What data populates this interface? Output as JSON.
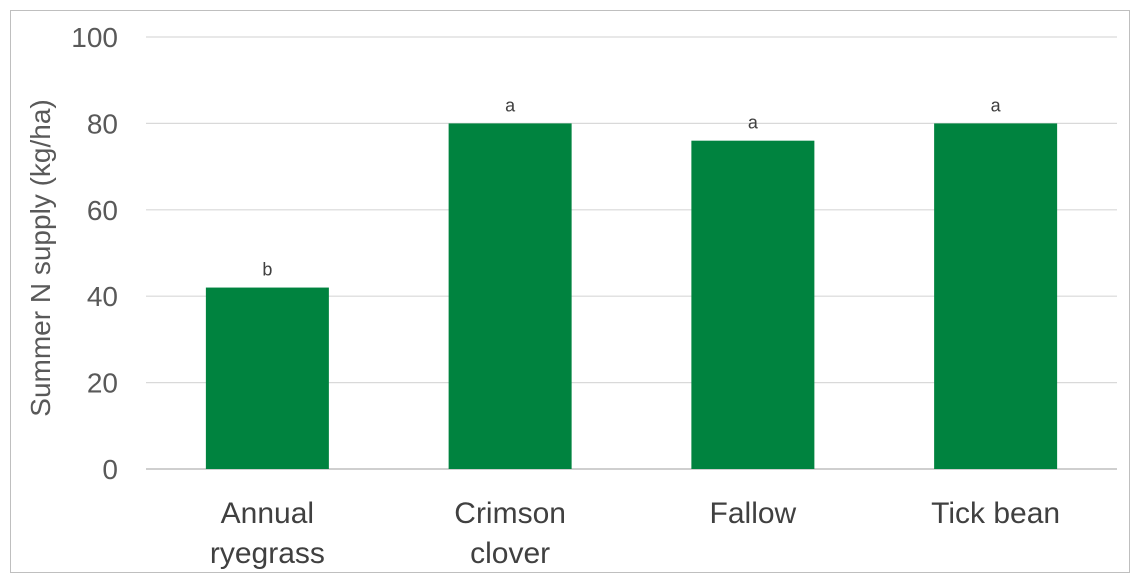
{
  "chart_data": {
    "type": "bar",
    "categories": [
      [
        "Annual",
        "ryegrass"
      ],
      [
        "Crimson",
        "clover"
      ],
      [
        "Fallow"
      ],
      [
        "Tick bean"
      ]
    ],
    "values": [
      42,
      80,
      76,
      80
    ],
    "data_labels": [
      "b",
      "a",
      "a",
      "a"
    ],
    "title": "",
    "xlabel": "",
    "ylabel": "Summer N supply (kg/ha)",
    "ylim": [
      0,
      100
    ],
    "yticks": [
      0,
      20,
      40,
      60,
      80,
      100
    ],
    "grid": "horizontal",
    "legend": "none",
    "bar_color": "#00833F",
    "gridline_color": "#d9d9d9",
    "axis_color": "#bfbfbf"
  }
}
